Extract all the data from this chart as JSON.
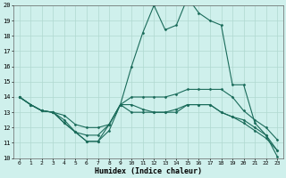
{
  "xlabel": "Humidex (Indice chaleur)",
  "xlim": [
    -0.5,
    23.5
  ],
  "ylim": [
    10,
    20
  ],
  "yticks": [
    10,
    11,
    12,
    13,
    14,
    15,
    16,
    17,
    18,
    19,
    20
  ],
  "xticks": [
    0,
    1,
    2,
    3,
    4,
    5,
    6,
    7,
    8,
    9,
    10,
    11,
    12,
    13,
    14,
    15,
    16,
    17,
    18,
    19,
    20,
    21,
    22,
    23
  ],
  "background_color": "#cff0ec",
  "grid_color": "#b0d8d0",
  "line_color": "#1a6b5a",
  "lines": [
    {
      "x": [
        0,
        1,
        2,
        3,
        4,
        5,
        6,
        7,
        8,
        9,
        10,
        11,
        12,
        13,
        14,
        15,
        16,
        17,
        18,
        19,
        20,
        21,
        22,
        23
      ],
      "y": [
        14,
        13.5,
        13.1,
        13,
        12.5,
        11.7,
        11.1,
        11.1,
        11.8,
        13.5,
        16,
        18.2,
        20,
        18.4,
        18.7,
        20.5,
        19.5,
        19,
        18.7,
        14.8,
        14.8,
        12.3,
        11.5,
        10.1
      ]
    },
    {
      "x": [
        0,
        1,
        2,
        3,
        4,
        5,
        6,
        7,
        8,
        9,
        10,
        11,
        12,
        13,
        14,
        15,
        16,
        17,
        18,
        19,
        20,
        21,
        22,
        23
      ],
      "y": [
        14,
        13.5,
        13.1,
        13,
        12.3,
        11.7,
        11.1,
        11.1,
        12.2,
        13.5,
        14,
        14,
        14,
        14,
        14.2,
        14.5,
        14.5,
        14.5,
        14.5,
        14,
        13.1,
        12.5,
        12,
        11.2
      ]
    },
    {
      "x": [
        0,
        1,
        2,
        3,
        4,
        5,
        6,
        7,
        8,
        9,
        10,
        11,
        12,
        13,
        14,
        15,
        16,
        17,
        18,
        19,
        20,
        21,
        22,
        23
      ],
      "y": [
        14,
        13.5,
        13.1,
        13,
        12.3,
        11.7,
        11.5,
        11.5,
        12.2,
        13.5,
        13.5,
        13.2,
        13,
        13,
        13.2,
        13.5,
        13.5,
        13.5,
        13,
        12.7,
        12.3,
        11.8,
        11.3,
        10.5
      ]
    },
    {
      "x": [
        0,
        1,
        2,
        3,
        4,
        5,
        6,
        7,
        8,
        9,
        10,
        11,
        12,
        13,
        14,
        15,
        16,
        17,
        18,
        19,
        20,
        21,
        22,
        23
      ],
      "y": [
        14,
        13.5,
        13.1,
        13,
        12.8,
        12.2,
        12,
        12,
        12.2,
        13.5,
        13,
        13,
        13,
        13,
        13,
        13.5,
        13.5,
        13.5,
        13,
        12.7,
        12.5,
        12,
        11.5,
        10.5
      ]
    }
  ]
}
